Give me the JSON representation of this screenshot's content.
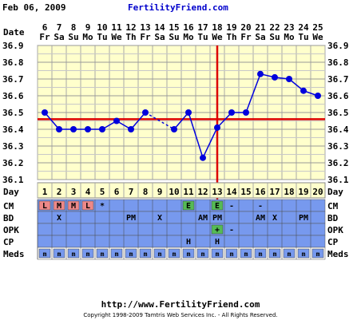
{
  "header": {
    "date": "Feb 06, 2009",
    "site": "FertilityFriend.com"
  },
  "footer": {
    "url": "http://www.FertilityFriend.com",
    "copyright": "Copyright 1998-2009 Tamtris Web Services Inc. - All Rights Reserved."
  },
  "colors": {
    "plot_bg": "#ffffcc",
    "data_rows_bg": "#7799ee",
    "header_band_bg": "#fff0a0",
    "line": "#0000dd",
    "coverline": "#dd0000",
    "ovulation": "#dd0000",
    "menstrual_cell": "#ee8888",
    "egg_white_cell": "#55bb55",
    "opk_positive_cell": "#55bb55",
    "meds_cell": "#ffffff"
  },
  "chart_data": {
    "type": "line",
    "title": "",
    "date_label": "Date",
    "day_label": "Day",
    "y_ticks": [
      "36.9",
      "36.8",
      "36.7",
      "36.6",
      "36.5",
      "36.4",
      "36.3",
      "36.2",
      "36.1"
    ],
    "ylim": [
      36.1,
      36.9
    ],
    "dates": [
      "6",
      "7",
      "8",
      "9",
      "10",
      "11",
      "12",
      "13",
      "14",
      "15",
      "16",
      "17",
      "18",
      "19",
      "20",
      "21",
      "22",
      "23",
      "24",
      "25"
    ],
    "weekdays": [
      "Fr",
      "Sa",
      "Su",
      "Mo",
      "Tu",
      "We",
      "Th",
      "Fr",
      "Sa",
      "Su",
      "Mo",
      "Tu",
      "We",
      "Th",
      "Fr",
      "Sa",
      "Su",
      "Mo",
      "Tu",
      "We"
    ],
    "cycle_days": [
      "1",
      "2",
      "3",
      "4",
      "5",
      "6",
      "7",
      "8",
      "9",
      "10",
      "11",
      "12",
      "13",
      "14",
      "15",
      "16",
      "17",
      "18",
      "19",
      "20"
    ],
    "temps": [
      36.5,
      36.4,
      36.4,
      36.4,
      36.4,
      36.45,
      36.4,
      36.5,
      null,
      36.4,
      36.5,
      36.23,
      36.41,
      36.5,
      36.5,
      36.73,
      36.71,
      36.7,
      36.63,
      36.6
    ],
    "dashed_bridge": [
      7,
      9
    ],
    "coverline": 36.46,
    "ovulation_day_index": 12,
    "rows": [
      {
        "label": "CM",
        "cells": [
          "L",
          "M",
          "M",
          "L",
          "*",
          "",
          "",
          "",
          "",
          "",
          "E",
          "",
          "E",
          "-",
          "",
          "-",
          "",
          "",
          "",
          ""
        ],
        "styles": [
          "menstrual",
          "menstrual",
          "menstrual",
          "menstrual",
          "",
          "",
          "",
          "",
          "",
          "",
          "egg",
          "",
          "egg",
          "",
          "",
          "",
          "",
          "",
          "",
          ""
        ]
      },
      {
        "label": "BD",
        "cells": [
          "",
          "X",
          "",
          "",
          "",
          "",
          "PM",
          "",
          "X",
          "",
          "",
          "AM",
          "PM",
          "",
          "",
          "AM",
          "X",
          "",
          "PM",
          ""
        ],
        "styles": [
          "",
          "",
          "",
          "",
          "",
          "",
          "",
          "",
          "",
          "",
          "",
          "",
          "",
          "",
          "",
          "",
          "",
          "",
          "",
          ""
        ]
      },
      {
        "label": "OPK",
        "cells": [
          "",
          "",
          "",
          "",
          "",
          "",
          "",
          "",
          "",
          "",
          "",
          "",
          "+",
          "-",
          "",
          "",
          "",
          "",
          "",
          ""
        ],
        "styles": [
          "",
          "",
          "",
          "",
          "",
          "",
          "",
          "",
          "",
          "",
          "",
          "",
          "opk",
          "",
          "",
          "",
          "",
          "",
          "",
          ""
        ]
      },
      {
        "label": "CP",
        "cells": [
          "",
          "",
          "",
          "",
          "",
          "",
          "",
          "",
          "",
          "",
          "H",
          "",
          "H",
          "",
          "",
          "",
          "",
          "",
          "",
          ""
        ],
        "styles": [
          "",
          "",
          "",
          "",
          "",
          "",
          "",
          "",
          "",
          "",
          "",
          "",
          "",
          "",
          "",
          "",
          "",
          "",
          "",
          ""
        ]
      },
      {
        "label": "Meds",
        "cells": [
          "m",
          "m",
          "m",
          "m",
          "m",
          "m",
          "m",
          "m",
          "m",
          "m",
          "m",
          "m",
          "m",
          "m",
          "m",
          "m",
          "m",
          "m",
          "m",
          "m"
        ],
        "styles": [
          "meds",
          "meds",
          "meds",
          "meds",
          "meds",
          "meds",
          "meds",
          "meds",
          "meds",
          "meds",
          "meds",
          "meds",
          "meds",
          "meds",
          "meds",
          "meds",
          "meds",
          "meds",
          "meds",
          "meds"
        ]
      }
    ]
  }
}
